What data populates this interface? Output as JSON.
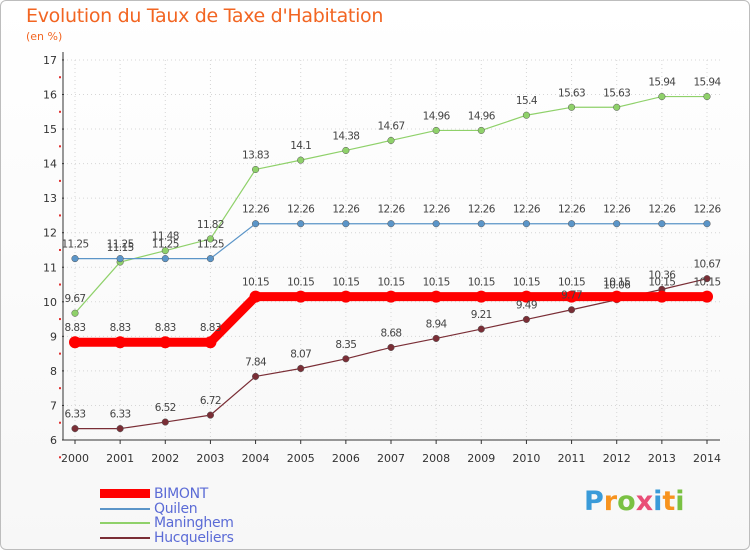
{
  "header": {
    "title": "Evolution du Taux de Taxe d'Habitation",
    "subtitle": "(en %)"
  },
  "logo": {
    "text": "Proxiti",
    "colors": [
      "#3a9bd9",
      "#f7931e",
      "#7ac143",
      "#e94e77",
      "#3a9bd9",
      "#f7931e",
      "#7ac143"
    ]
  },
  "chart_data": {
    "type": "line",
    "title": "Evolution du Taux de Taxe d'Habitation",
    "subtitle": "(en %)",
    "x": [
      "2000",
      "2001",
      "2002",
      "2003",
      "2004",
      "2005",
      "2006",
      "2007",
      "2008",
      "2009",
      "2010",
      "2011",
      "2012",
      "2013",
      "2014"
    ],
    "ylim": [
      6,
      17
    ],
    "yticks": [
      "6",
      "7",
      "8",
      "9",
      "10",
      "11",
      "12",
      "13",
      "14",
      "15",
      "16",
      "17"
    ],
    "grid": true,
    "legend": "bottom-left",
    "series": [
      {
        "name": "BIMONT",
        "color": "#ff0000",
        "thick": true,
        "values": [
          8.83,
          8.83,
          8.83,
          8.83,
          10.15,
          10.15,
          10.15,
          10.15,
          10.15,
          10.15,
          10.15,
          10.15,
          10.15,
          10.15,
          10.15
        ],
        "labels": [
          "8.83",
          "8.83",
          "8.83",
          "8.83",
          "10.15",
          "10.15",
          "10.15",
          "10.15",
          "10.15",
          "10.15",
          "10.15",
          "10.15",
          "10.15",
          "10.15",
          "10.15"
        ]
      },
      {
        "name": "Quilen",
        "color": "#5b95c8",
        "thick": false,
        "values": [
          11.25,
          11.25,
          11.25,
          11.25,
          12.26,
          12.26,
          12.26,
          12.26,
          12.26,
          12.26,
          12.26,
          12.26,
          12.26,
          12.26,
          12.26
        ],
        "labels": [
          "11.25",
          "11.25",
          "11.25",
          "11.25",
          "12.26",
          "12.26",
          "12.26",
          "12.26",
          "12.26",
          "12.26",
          "12.26",
          "12.26",
          "12.26",
          "12.26",
          "12.26"
        ]
      },
      {
        "name": "Maninghem",
        "color": "#8fd16a",
        "thick": false,
        "values": [
          9.67,
          11.15,
          11.48,
          11.82,
          13.83,
          14.1,
          14.38,
          14.67,
          14.96,
          14.96,
          15.4,
          15.63,
          15.63,
          15.94,
          15.94
        ],
        "labels": [
          "9.67",
          "11.15",
          "11.48",
          "11.82",
          "13.83",
          "14.1",
          "14.38",
          "14.67",
          "14.96",
          "14.96",
          "15.4",
          "15.63",
          "15.63",
          "15.94",
          "15.94"
        ]
      },
      {
        "name": "Hucqueliers",
        "color": "#7a2e36",
        "thick": false,
        "values": [
          6.33,
          6.33,
          6.52,
          6.72,
          7.84,
          8.07,
          8.35,
          8.68,
          8.94,
          9.21,
          9.49,
          9.77,
          10.06,
          10.36,
          10.67
        ],
        "labels": [
          "6.33",
          "6.33",
          "6.52",
          "6.72",
          "7.84",
          "8.07",
          "8.35",
          "8.68",
          "8.94",
          "9.21",
          "9.49",
          "9.77",
          "10.06",
          "10.36",
          "10.67"
        ]
      }
    ]
  }
}
